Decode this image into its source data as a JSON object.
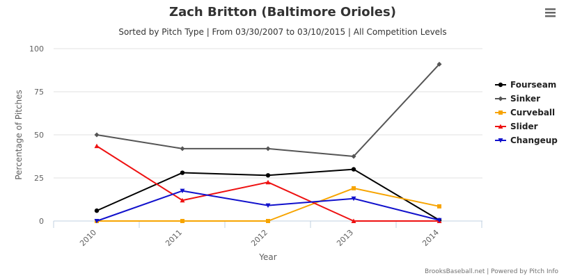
{
  "chart_data": {
    "type": "line",
    "title": "Zach Britton (Baltimore Orioles)",
    "subtitle": "Sorted by Pitch Type | From 03/30/2007 to 03/10/2015 | All Competition Levels",
    "xlabel": "Year",
    "ylabel": "Percentage of Pitches",
    "categories": [
      "2010",
      "2011",
      "2012",
      "2013",
      "2014"
    ],
    "ylim": [
      0,
      100
    ],
    "yticks": [
      0,
      25,
      50,
      75,
      100
    ],
    "grid": true,
    "legend_position": "right",
    "series": [
      {
        "name": "Fourseam",
        "color": "#000000",
        "marker": "circle",
        "values": [
          6,
          28,
          26.5,
          30,
          0.5
        ]
      },
      {
        "name": "Sinker",
        "color": "#555555",
        "marker": "diamond",
        "values": [
          50,
          42,
          42,
          37.5,
          91
        ]
      },
      {
        "name": "Curveball",
        "color": "#f7a400",
        "marker": "square",
        "values": [
          0,
          0,
          0,
          19,
          8.5
        ]
      },
      {
        "name": "Slider",
        "color": "#ee1111",
        "marker": "triangle",
        "values": [
          43.5,
          12,
          22.5,
          0,
          0
        ]
      },
      {
        "name": "Changeup",
        "color": "#1111cc",
        "marker": "triangle-down",
        "values": [
          0,
          17.5,
          9,
          13,
          0.5
        ]
      }
    ]
  },
  "credits": "BrooksBaseball.net | Powered by Pitch Info",
  "menu_icon": "hamburger-menu-icon"
}
